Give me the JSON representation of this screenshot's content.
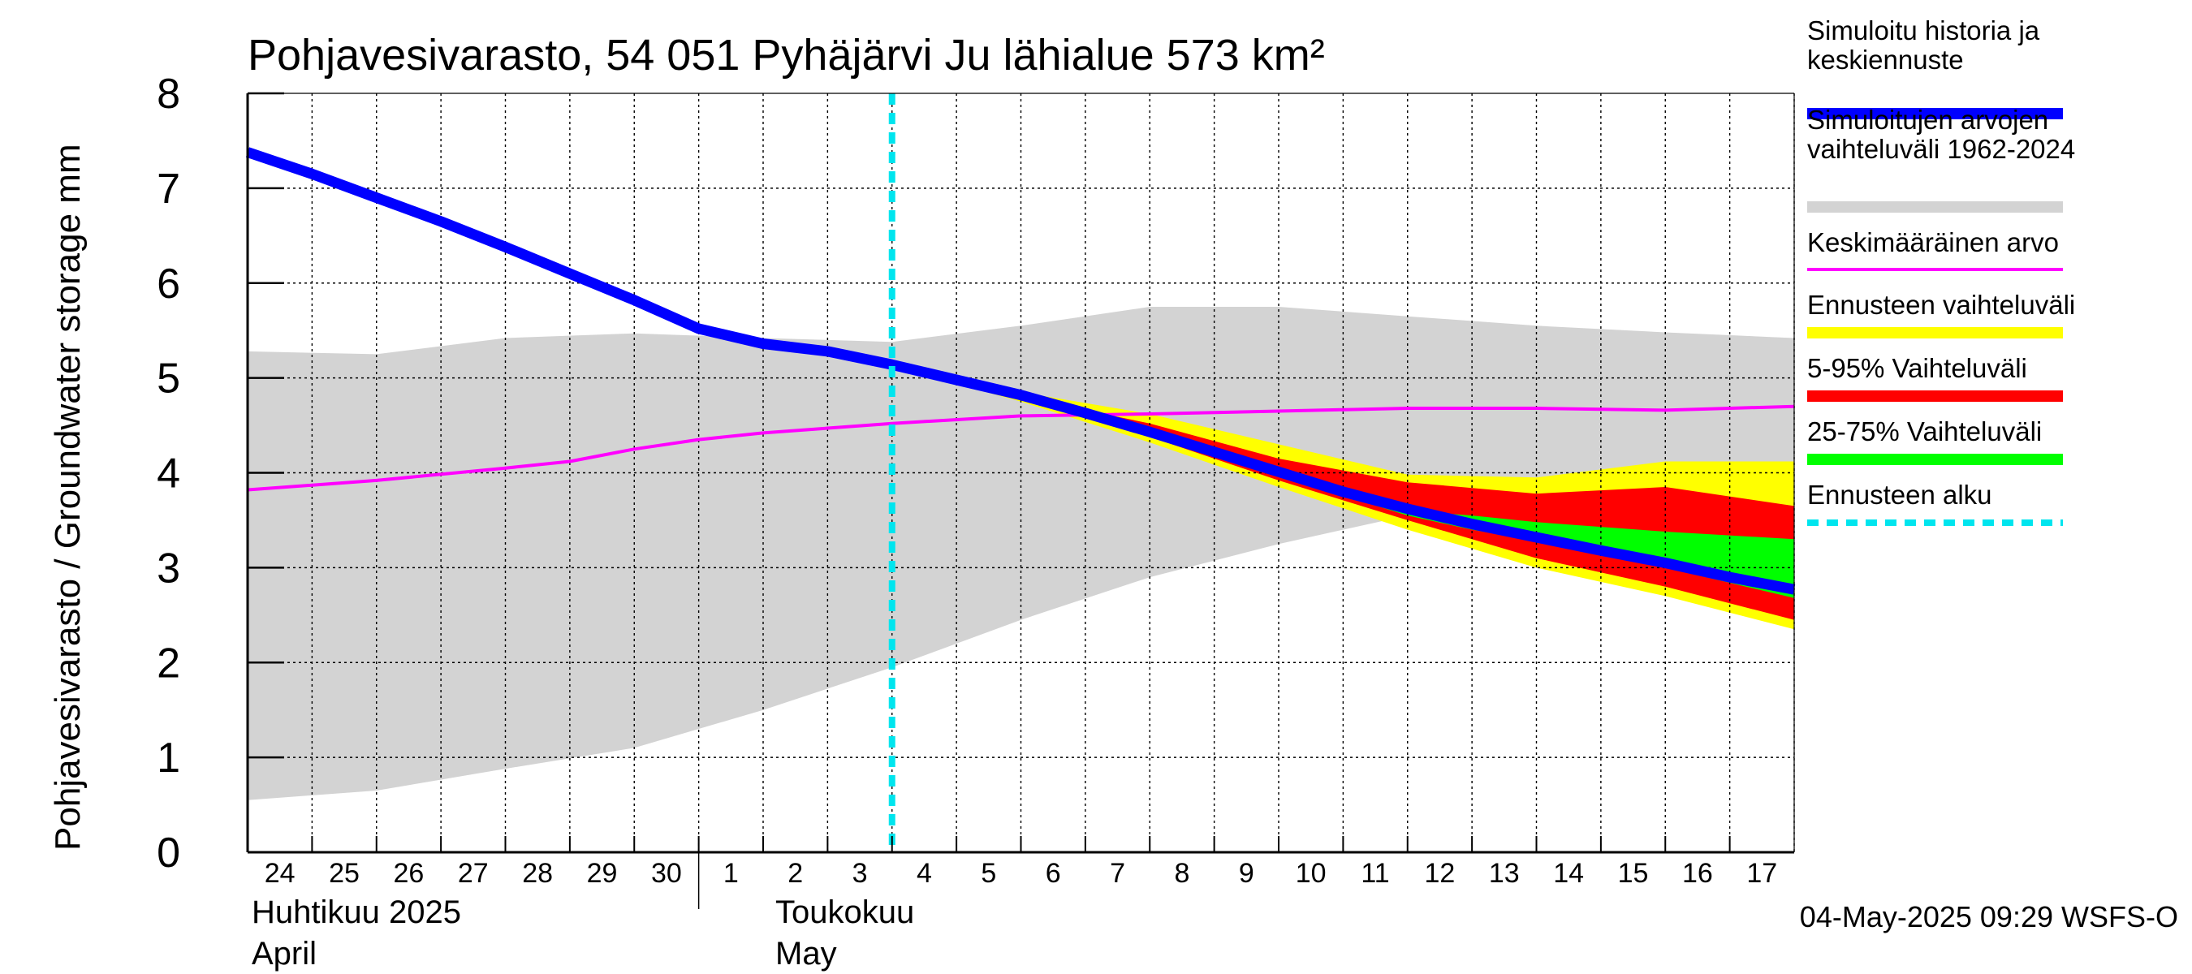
{
  "chart_data": {
    "type": "area",
    "title": "Pohjavesivarasto, 54 051 Pyhäjärvi Ju lähialue 573 km²",
    "ylabel": "Pohjavesivarasto / Groundwater storage   mm",
    "ylim": [
      0,
      8
    ],
    "yticks": [
      "0",
      "1",
      "2",
      "3",
      "4",
      "5",
      "6",
      "7",
      "8"
    ],
    "x_start": "2025-04-24",
    "x_end": "2025-05-18",
    "xtick_labels": [
      "24",
      "25",
      "26",
      "27",
      "28",
      "29",
      "30",
      "1",
      "2",
      "3",
      "4",
      "5",
      "6",
      "7",
      "8",
      "9",
      "10",
      "11",
      "12",
      "13",
      "14",
      "15",
      "16",
      "17"
    ],
    "month_labels": [
      {
        "fi": "Huhtikuu  2025",
        "en": "April"
      },
      {
        "fi": "Toukokuu",
        "en": "May"
      }
    ],
    "grid": true,
    "legend_position": "right",
    "forecast_start": "2025-05-04",
    "series": [
      {
        "name": "Simuloitujen arvojen vaihteluväli 1962-2024",
        "kind": "band",
        "color": "#d3d3d3",
        "x": [
          "2025-04-24",
          "2025-04-26",
          "2025-04-28",
          "2025-04-30",
          "2025-05-02",
          "2025-05-04",
          "2025-05-06",
          "2025-05-08",
          "2025-05-10",
          "2025-05-12",
          "2025-05-14",
          "2025-05-16",
          "2025-05-18"
        ],
        "low": [
          0.55,
          0.65,
          0.88,
          1.1,
          1.5,
          1.95,
          2.45,
          2.9,
          3.25,
          3.55,
          3.75,
          3.85,
          3.95
        ],
        "high": [
          5.28,
          5.25,
          5.42,
          5.47,
          5.42,
          5.38,
          5.55,
          5.75,
          5.75,
          5.65,
          5.55,
          5.48,
          5.42
        ]
      },
      {
        "name": "Ennusteen vaihteluväli",
        "kind": "band",
        "color": "#ffff00",
        "x": [
          "2025-05-04",
          "2025-05-06",
          "2025-05-08",
          "2025-05-10",
          "2025-05-12",
          "2025-05-14",
          "2025-05-16",
          "2025-05-18"
        ],
        "low": [
          5.12,
          4.75,
          4.32,
          3.85,
          3.4,
          3.0,
          2.7,
          2.35
        ],
        "high": [
          5.12,
          4.85,
          4.62,
          4.3,
          3.98,
          3.95,
          4.12,
          4.12
        ]
      },
      {
        "name": "5-95% Vaihteluväli",
        "kind": "band",
        "color": "#ff0000",
        "x": [
          "2025-05-04",
          "2025-05-06",
          "2025-05-08",
          "2025-05-10",
          "2025-05-12",
          "2025-05-14",
          "2025-05-16",
          "2025-05-18"
        ],
        "low": [
          5.12,
          4.77,
          4.38,
          3.92,
          3.5,
          3.1,
          2.8,
          2.45
        ],
        "high": [
          5.12,
          4.8,
          4.52,
          4.15,
          3.9,
          3.78,
          3.85,
          3.65
        ]
      },
      {
        "name": "25-75% Vaihteluväli",
        "kind": "band",
        "color": "#00ff00",
        "x": [
          "2025-05-10",
          "2025-05-12",
          "2025-05-13",
          "2025-05-14",
          "2025-05-16",
          "2025-05-18"
        ],
        "low": [
          3.97,
          3.55,
          3.4,
          3.28,
          3.0,
          2.68
        ],
        "high": [
          3.97,
          3.6,
          3.55,
          3.48,
          3.38,
          3.3
        ]
      },
      {
        "name": "Keskimääräinen arvo",
        "kind": "line",
        "color": "#ff00ff",
        "x": [
          "2025-04-24",
          "2025-04-26",
          "2025-04-28",
          "2025-04-29",
          "2025-04-30",
          "2025-05-01",
          "2025-05-02",
          "2025-05-04",
          "2025-05-06",
          "2025-05-08",
          "2025-05-10",
          "2025-05-12",
          "2025-05-14",
          "2025-05-16",
          "2025-05-18"
        ],
        "y": [
          3.82,
          3.92,
          4.05,
          4.12,
          4.25,
          4.35,
          4.42,
          4.52,
          4.6,
          4.62,
          4.65,
          4.68,
          4.68,
          4.66,
          4.7
        ]
      },
      {
        "name": "Simuloitu historia ja keskiennuste",
        "kind": "line",
        "color": "#0000ff",
        "x": [
          "2025-04-24",
          "2025-04-25",
          "2025-04-26",
          "2025-04-27",
          "2025-04-28",
          "2025-04-29",
          "2025-04-30",
          "2025-05-01",
          "2025-05-02",
          "2025-05-03",
          "2025-05-04",
          "2025-05-05",
          "2025-05-06",
          "2025-05-07",
          "2025-05-08",
          "2025-05-09",
          "2025-05-10",
          "2025-05-11",
          "2025-05-12",
          "2025-05-13",
          "2025-05-14",
          "2025-05-15",
          "2025-05-16",
          "2025-05-17",
          "2025-05-18"
        ],
        "y": [
          7.38,
          7.15,
          6.9,
          6.65,
          6.38,
          6.1,
          5.82,
          5.52,
          5.36,
          5.28,
          5.14,
          4.98,
          4.82,
          4.63,
          4.43,
          4.22,
          4.01,
          3.8,
          3.62,
          3.46,
          3.32,
          3.18,
          3.05,
          2.9,
          2.77
        ]
      },
      {
        "name": "Ennusteen alku",
        "kind": "vline",
        "color": "#00e5ee",
        "x": "2025-05-04"
      }
    ],
    "legend": [
      {
        "label": "Simuloitu historia ja\nkeskiennuste",
        "color": "#0000ff",
        "style": "thick"
      },
      {
        "label": "Simuloitujen arvojen\nvaihteluväli 1962-2024",
        "color": "#d3d3d3",
        "style": "thick"
      },
      {
        "label": "Keskimääräinen arvo",
        "color": "#ff00ff",
        "style": "thin"
      },
      {
        "label": "Ennusteen vaihteluväli",
        "color": "#ffff00",
        "style": "thick"
      },
      {
        "label": "5-95% Vaihteluväli",
        "color": "#ff0000",
        "style": "thick"
      },
      {
        "label": "25-75% Vaihteluväli",
        "color": "#00ff00",
        "style": "thick"
      },
      {
        "label": "Ennusteen alku",
        "color": "#00e5ee",
        "style": "dashed"
      }
    ],
    "footer": "04-May-2025 09:29 WSFS-O"
  }
}
